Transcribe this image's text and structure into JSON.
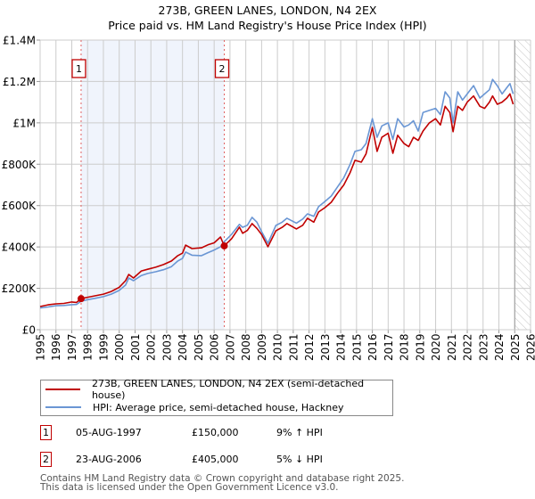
{
  "chart_data": {
    "type": "line",
    "title": "273B, GREEN LANES, LONDON, N4 2EX",
    "subtitle": "Price paid vs. HM Land Registry's House Price Index (HPI)",
    "xlabel": "",
    "ylabel": "",
    "xlim": [
      1995,
      2026
    ],
    "ylim": [
      0,
      1400000
    ],
    "grid": true,
    "x_ticks": [
      "1995",
      "1996",
      "1997",
      "1998",
      "1999",
      "2000",
      "2001",
      "2002",
      "2003",
      "2004",
      "2005",
      "2006",
      "2007",
      "2008",
      "2009",
      "2010",
      "2011",
      "2012",
      "2013",
      "2014",
      "2015",
      "2016",
      "2017",
      "2018",
      "2019",
      "2020",
      "2021",
      "2022",
      "2023",
      "2024",
      "2025",
      "2026"
    ],
    "x_tick_values": [
      1995,
      1996,
      1997,
      1998,
      1999,
      2000,
      2001,
      2002,
      2003,
      2004,
      2005,
      2006,
      2007,
      2008,
      2009,
      2010,
      2011,
      2012,
      2013,
      2014,
      2015,
      2016,
      2017,
      2018,
      2019,
      2020,
      2021,
      2022,
      2023,
      2024,
      2025,
      2026
    ],
    "y_ticks": [
      "£0",
      "£200K",
      "£400K",
      "£600K",
      "£800K",
      "£1M",
      "£1.2M",
      "£1.4M"
    ],
    "y_tick_values": [
      0,
      200000,
      400000,
      600000,
      800000,
      1000000,
      1200000,
      1400000
    ],
    "legend_position": "below",
    "shaded_period": {
      "from": 1997.59,
      "to": 2006.64
    },
    "forecast_hatch_from": 2025.0,
    "series": [
      {
        "name": "273B, GREEN LANES, LONDON, N4 2EX (semi-detached house)",
        "color": "#c00000",
        "x": [
          1995.0,
          1995.5,
          1996.0,
          1996.5,
          1997.0,
          1997.3,
          1997.59,
          1998.0,
          1998.5,
          1999.0,
          1999.5,
          2000.0,
          2000.4,
          2000.6,
          2000.9,
          2001.4,
          2001.8,
          2002.3,
          2002.8,
          2003.3,
          2003.7,
          2004.0,
          2004.2,
          2004.6,
          2005.2,
          2005.6,
          2006.0,
          2006.4,
          2006.64,
          2007.1,
          2007.6,
          2007.8,
          2008.1,
          2008.4,
          2008.7,
          2009.0,
          2009.4,
          2009.9,
          2010.3,
          2010.6,
          2011.2,
          2011.6,
          2011.9,
          2012.3,
          2012.6,
          2013.0,
          2013.4,
          2013.8,
          2014.2,
          2014.6,
          2014.9,
          2015.3,
          2015.6,
          2016.0,
          2016.3,
          2016.6,
          2017.0,
          2017.3,
          2017.6,
          2018.0,
          2018.3,
          2018.6,
          2018.9,
          2019.2,
          2019.6,
          2020.0,
          2020.3,
          2020.6,
          2020.9,
          2021.1,
          2021.4,
          2021.7,
          2022.0,
          2022.4,
          2022.8,
          2023.1,
          2023.4,
          2023.6,
          2023.9,
          2024.2,
          2024.5,
          2024.7,
          2024.9
        ],
        "values": [
          112000,
          120000,
          125000,
          127000,
          134000,
          132000,
          150000,
          157000,
          164000,
          172000,
          185000,
          205000,
          237000,
          267000,
          250000,
          284000,
          292000,
          302000,
          315000,
          332000,
          358000,
          370000,
          409000,
          392000,
          396000,
          410000,
          420000,
          448000,
          405000,
          440000,
          496000,
          466000,
          480000,
          513000,
          490000,
          460000,
          401000,
          478000,
          495000,
          513000,
          487000,
          505000,
          539000,
          520000,
          569000,
          590000,
          616000,
          660000,
          700000,
          760000,
          819000,
          810000,
          850000,
          978000,
          862000,
          930000,
          950000,
          853000,
          940000,
          900000,
          885000,
          930000,
          915000,
          960000,
          1000000,
          1020000,
          990000,
          1080000,
          1050000,
          957000,
          1080000,
          1060000,
          1100000,
          1130000,
          1080000,
          1070000,
          1100000,
          1130000,
          1090000,
          1100000,
          1120000,
          1140000,
          1090000
        ]
      },
      {
        "name": "HPI: Average price, semi-detached house, Hackney",
        "color": "#6a96d4",
        "x": [
          1995.0,
          1995.5,
          1996.0,
          1996.5,
          1997.0,
          1997.3,
          1997.59,
          1998.0,
          1998.5,
          1999.0,
          1999.5,
          2000.0,
          2000.4,
          2000.6,
          2000.9,
          2001.4,
          2001.8,
          2002.3,
          2002.8,
          2003.3,
          2003.7,
          2004.0,
          2004.2,
          2004.6,
          2005.2,
          2005.6,
          2006.0,
          2006.4,
          2006.64,
          2007.1,
          2007.6,
          2007.8,
          2008.1,
          2008.4,
          2008.7,
          2009.0,
          2009.4,
          2009.9,
          2010.3,
          2010.6,
          2011.2,
          2011.6,
          2011.9,
          2012.3,
          2012.6,
          2013.0,
          2013.4,
          2013.8,
          2014.2,
          2014.6,
          2014.9,
          2015.3,
          2015.6,
          2016.0,
          2016.3,
          2016.6,
          2017.0,
          2017.3,
          2017.6,
          2018.0,
          2018.3,
          2018.6,
          2018.9,
          2019.2,
          2019.6,
          2020.0,
          2020.3,
          2020.6,
          2020.9,
          2021.1,
          2021.4,
          2021.7,
          2022.0,
          2022.4,
          2022.8,
          2023.1,
          2023.4,
          2023.6,
          2023.9,
          2024.2,
          2024.5,
          2024.7,
          2024.9
        ],
        "values": [
          105000,
          110000,
          116000,
          117000,
          121000,
          122000,
          138000,
          145000,
          152000,
          160000,
          172000,
          190000,
          216000,
          250000,
          237000,
          262000,
          272000,
          280000,
          290000,
          305000,
          332000,
          345000,
          375000,
          360000,
          358000,
          372000,
          385000,
          401000,
          425000,
          461000,
          509000,
          495000,
          505000,
          543000,
          520000,
          474000,
          418000,
          504000,
          520000,
          539000,
          515000,
          535000,
          560000,
          548000,
          595000,
          620000,
          646000,
          690000,
          735000,
          800000,
          862000,
          870000,
          900000,
          1020000,
          930000,
          985000,
          1000000,
          920000,
          1020000,
          980000,
          990000,
          1010000,
          960000,
          1050000,
          1060000,
          1070000,
          1040000,
          1150000,
          1120000,
          1000000,
          1150000,
          1110000,
          1140000,
          1180000,
          1120000,
          1140000,
          1160000,
          1210000,
          1180000,
          1140000,
          1170000,
          1190000,
          1140000
        ]
      }
    ],
    "sales": [
      {
        "id": "1",
        "year": 1997.59,
        "value": 150000
      },
      {
        "id": "2",
        "year": 2006.64,
        "value": 405000
      }
    ]
  },
  "header": {
    "title": "273B, GREEN LANES, LONDON, N4 2EX",
    "subtitle": "Price paid vs. HM Land Registry's House Price Index (HPI)"
  },
  "legend": {
    "items": [
      {
        "label": "273B, GREEN LANES, LONDON, N4 2EX (semi-detached house)",
        "color": "#c00000"
      },
      {
        "label": "HPI: Average price, semi-detached house, Hackney",
        "color": "#6a96d4"
      }
    ]
  },
  "sales_table": [
    {
      "id": "1",
      "date": "05-AUG-1997",
      "price": "£150,000",
      "hpi": "9% ↑ HPI"
    },
    {
      "id": "2",
      "date": "23-AUG-2006",
      "price": "£405,000",
      "hpi": "5% ↓ HPI"
    }
  ],
  "footer": {
    "line1": "Contains HM Land Registry data © Crown copyright and database right 2025.",
    "line2": "This data is licensed under the Open Government Licence v3.0."
  }
}
